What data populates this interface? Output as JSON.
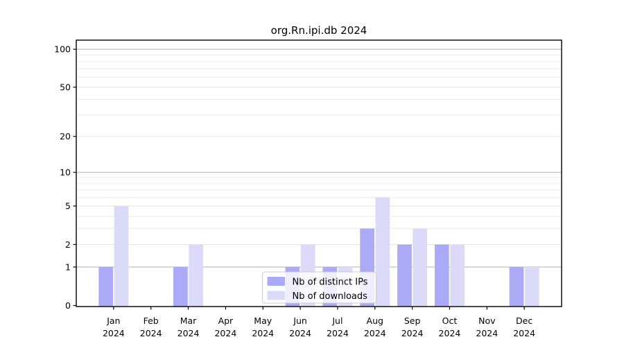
{
  "chart_data": {
    "type": "bar",
    "title": "org.Rn.ipi.db 2024",
    "months": [
      "Jan",
      "Feb",
      "Mar",
      "Apr",
      "May",
      "Jun",
      "Jul",
      "Aug",
      "Sep",
      "Oct",
      "Nov",
      "Dec"
    ],
    "year": "2024",
    "series": [
      {
        "name": "Nb of distinct IPs",
        "color": "#aaaaf7",
        "values": [
          1,
          0,
          1,
          0,
          0,
          1,
          1,
          3,
          2,
          2,
          0,
          1
        ]
      },
      {
        "name": "Nb of downloads",
        "color": "#dbdbf9",
        "values": [
          5,
          0,
          2,
          0,
          0,
          2,
          1,
          6,
          3,
          2,
          0,
          1
        ]
      }
    ],
    "yticks": [
      0,
      1,
      2,
      5,
      10,
      20,
      50,
      100
    ],
    "grid": {
      "major": [
        1,
        10,
        100
      ],
      "soft": [
        2,
        5,
        20,
        50
      ],
      "minor": [
        3,
        4,
        6,
        7,
        8,
        9,
        30,
        40,
        60,
        70,
        80,
        90
      ]
    },
    "scale": "log10(1+x)",
    "ylim": [
      0,
      118
    ],
    "xlabel": "",
    "ylabel": "",
    "legend_position": "lower center",
    "colors": {
      "spine": "#000000",
      "tick_label": "#000000",
      "grid_major": "#b1b1b1",
      "grid_soft": "#e3e3e3",
      "grid_minor": "#ececec",
      "legend_border": "#cccccc",
      "legend_background": "rgba(255,255,255,0.8)"
    }
  }
}
